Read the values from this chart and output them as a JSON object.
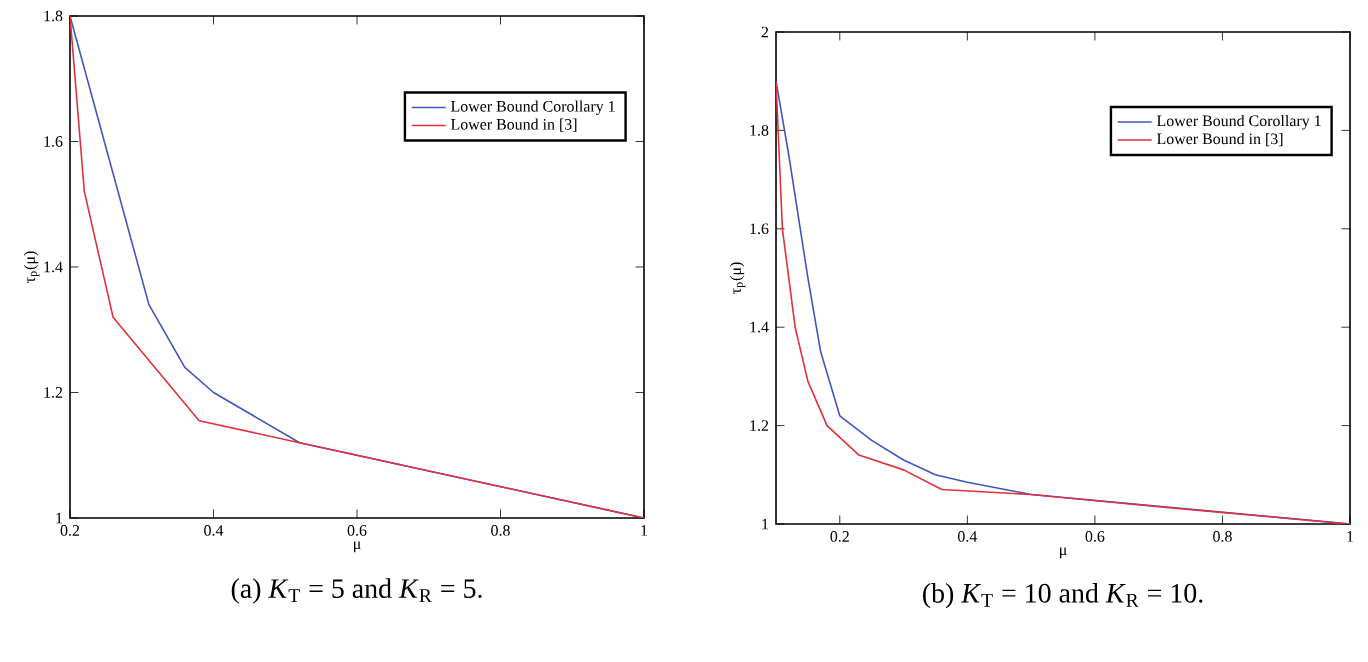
{
  "chart_data": [
    {
      "type": "line",
      "title": "(a) *K*$_{T}$ = 5 and *K*$_{R}$ = 5.",
      "xlabel": "μ",
      "ylabel": "τ$_{p}$(μ)",
      "xlim": [
        0.2,
        1
      ],
      "ylim": [
        1,
        1.8
      ],
      "xticks": [
        0.2,
        0.4,
        0.6,
        0.8,
        1
      ],
      "yticks": [
        1,
        1.2,
        1.4,
        1.6,
        1.8
      ],
      "legend": "top right",
      "grid": false,
      "line_style": "solid",
      "series": [
        {
          "name": "Lower Bound Corollary 1",
          "color": "#4055c0",
          "x": [
            0.2,
            0.31,
            0.36,
            0.4,
            0.52,
            1
          ],
          "values": [
            1.8,
            1.34,
            1.24,
            1.2,
            1.12,
            1.0
          ]
        },
        {
          "name": "Lower Bound in [3]",
          "color": "#e0303a",
          "x": [
            0.2,
            0.22,
            0.26,
            0.38,
            0.52,
            0.6,
            1
          ],
          "values": [
            1.8,
            1.52,
            1.32,
            1.155,
            1.12,
            1.1,
            1.0
          ]
        }
      ]
    },
    {
      "type": "line",
      "title": "(b) *K*$_{T}$ = 10 and *K*$_{R}$ = 10.",
      "xlabel": "μ",
      "ylabel": "τ$_{p}$(μ)",
      "xlim": [
        0.1,
        1
      ],
      "ylim": [
        1,
        2
      ],
      "xticks": [
        0.2,
        0.4,
        0.6,
        0.8,
        1
      ],
      "yticks": [
        1,
        1.2,
        1.4,
        1.6,
        1.8,
        2
      ],
      "legend": "top right",
      "grid": false,
      "line_style": "solid",
      "series": [
        {
          "name": "Lower Bound Corollary 1",
          "color": "#4055c0",
          "x": [
            0.1,
            0.12,
            0.15,
            0.17,
            0.2,
            0.25,
            0.3,
            0.35,
            0.4,
            0.5,
            1
          ],
          "values": [
            1.9,
            1.75,
            1.5,
            1.35,
            1.22,
            1.17,
            1.13,
            1.1,
            1.085,
            1.06,
            1.0
          ]
        },
        {
          "name": "Lower Bound in [3]",
          "color": "#e0303a",
          "x": [
            0.1,
            0.11,
            0.13,
            0.15,
            0.18,
            0.23,
            0.3,
            0.36,
            0.5,
            0.7,
            1
          ],
          "values": [
            1.9,
            1.6,
            1.4,
            1.29,
            1.2,
            1.14,
            1.11,
            1.07,
            1.06,
            1.035,
            1.0
          ]
        }
      ]
    }
  ]
}
